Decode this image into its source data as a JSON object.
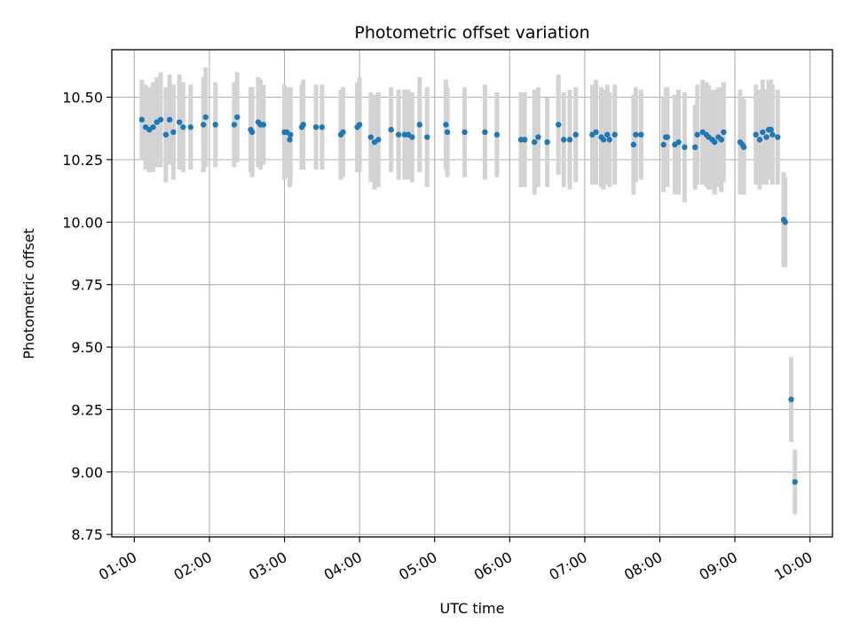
{
  "chart_data": {
    "type": "scatter",
    "title": "Photometric offset variation",
    "xlabel": "UTC time",
    "ylabel": "Photometric offset",
    "x_unit": "hours UTC",
    "xlim": [
      0.7,
      10.3
    ],
    "ylim": [
      8.74,
      10.69
    ],
    "x_ticks": [
      1,
      2,
      3,
      4,
      5,
      6,
      7,
      8,
      9,
      10
    ],
    "x_tick_labels": [
      "01:00",
      "02:00",
      "03:00",
      "04:00",
      "05:00",
      "06:00",
      "07:00",
      "08:00",
      "09:00",
      "10:00"
    ],
    "y_ticks": [
      8.75,
      9.0,
      9.25,
      9.5,
      9.75,
      10.0,
      10.25,
      10.5
    ],
    "y_tick_labels": [
      "8.75",
      "9.00",
      "9.25",
      "9.50",
      "9.75",
      "10.00",
      "10.25",
      "10.50"
    ],
    "grid": true,
    "point_color": "#1f77b4",
    "errorbar_color": "#d3d3d3",
    "series": [
      {
        "x": [
          1.1,
          1.15,
          1.2,
          1.25,
          1.3,
          1.35,
          1.42,
          1.47,
          1.52,
          1.6,
          1.65,
          1.75,
          1.92,
          1.95,
          2.08,
          2.33,
          2.37,
          2.55,
          2.57,
          2.65,
          2.68,
          2.72,
          3.0,
          3.03,
          3.07,
          3.08,
          3.23,
          3.25,
          3.42,
          3.5,
          3.75,
          3.78,
          3.97,
          4.0,
          4.15,
          4.2,
          4.25,
          4.42,
          4.52,
          4.6,
          4.65,
          4.7,
          4.8,
          4.9,
          5.15,
          5.17,
          5.4,
          5.67,
          5.83,
          6.15,
          6.2,
          6.33,
          6.38,
          6.5,
          6.65,
          6.72,
          6.8,
          6.88,
          7.1,
          7.15,
          7.22,
          7.25,
          7.3,
          7.33,
          7.4,
          7.65,
          7.68,
          7.75,
          8.05,
          8.08,
          8.1,
          8.2,
          8.25,
          8.33,
          8.47,
          8.5,
          8.57,
          8.62,
          8.65,
          8.7,
          8.73,
          8.78,
          8.82,
          8.85,
          9.07,
          9.1,
          9.12,
          9.28,
          9.33,
          9.37,
          9.42,
          9.45,
          9.48,
          9.5,
          9.57,
          9.65,
          9.67,
          9.75,
          9.8
        ],
        "y": [
          10.41,
          10.38,
          10.37,
          10.38,
          10.4,
          10.41,
          10.35,
          10.41,
          10.36,
          10.4,
          10.38,
          10.38,
          10.39,
          10.42,
          10.39,
          10.39,
          10.42,
          10.37,
          10.36,
          10.4,
          10.39,
          10.39,
          10.36,
          10.36,
          10.33,
          10.35,
          10.38,
          10.39,
          10.38,
          10.38,
          10.35,
          10.36,
          10.38,
          10.39,
          10.34,
          10.32,
          10.33,
          10.37,
          10.35,
          10.35,
          10.35,
          10.34,
          10.39,
          10.34,
          10.39,
          10.36,
          10.36,
          10.36,
          10.35,
          10.33,
          10.33,
          10.32,
          10.34,
          10.32,
          10.39,
          10.33,
          10.33,
          10.35,
          10.35,
          10.36,
          10.34,
          10.33,
          10.35,
          10.33,
          10.35,
          10.31,
          10.35,
          10.35,
          10.31,
          10.34,
          10.34,
          10.31,
          10.32,
          10.3,
          10.3,
          10.35,
          10.36,
          10.35,
          10.34,
          10.33,
          10.32,
          10.34,
          10.33,
          10.36,
          10.32,
          10.31,
          10.3,
          10.35,
          10.33,
          10.36,
          10.34,
          10.37,
          10.37,
          10.35,
          10.34,
          10.01,
          10.0,
          9.29,
          8.96
        ],
        "err": [
          0.16,
          0.17,
          0.17,
          0.18,
          0.18,
          0.19,
          0.19,
          0.18,
          0.19,
          0.19,
          0.18,
          0.17,
          0.19,
          0.2,
          0.17,
          0.17,
          0.18,
          0.17,
          0.18,
          0.18,
          0.18,
          0.16,
          0.19,
          0.18,
          0.19,
          0.19,
          0.17,
          0.18,
          0.17,
          0.17,
          0.18,
          0.18,
          0.18,
          0.19,
          0.18,
          0.19,
          0.19,
          0.17,
          0.18,
          0.18,
          0.18,
          0.18,
          0.19,
          0.2,
          0.18,
          0.18,
          0.18,
          0.19,
          0.17,
          0.19,
          0.19,
          0.21,
          0.2,
          0.18,
          0.2,
          0.19,
          0.2,
          0.19,
          0.2,
          0.21,
          0.2,
          0.2,
          0.2,
          0.19,
          0.2,
          0.2,
          0.19,
          0.18,
          0.19,
          0.2,
          0.2,
          0.2,
          0.21,
          0.22,
          0.17,
          0.2,
          0.21,
          0.21,
          0.21,
          0.2,
          0.21,
          0.2,
          0.21,
          0.2,
          0.21,
          0.19,
          0.19,
          0.2,
          0.2,
          0.21,
          0.19,
          0.2,
          0.2,
          0.2,
          0.19,
          0.19,
          0.18,
          0.17,
          0.13
        ]
      }
    ]
  }
}
